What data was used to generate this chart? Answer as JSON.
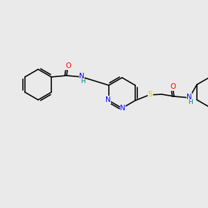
{
  "background_color": "#eaeaea",
  "figsize": [
    3.0,
    3.0
  ],
  "dpi": 100,
  "bond_color": "#000000",
  "bond_width": 1.2,
  "atom_colors": {
    "C": "#000000",
    "N": "#0000ff",
    "O": "#ff0000",
    "S": "#cccc00",
    "H_label": "#008080"
  },
  "font_size": 7.5,
  "font_size_small": 6.5
}
